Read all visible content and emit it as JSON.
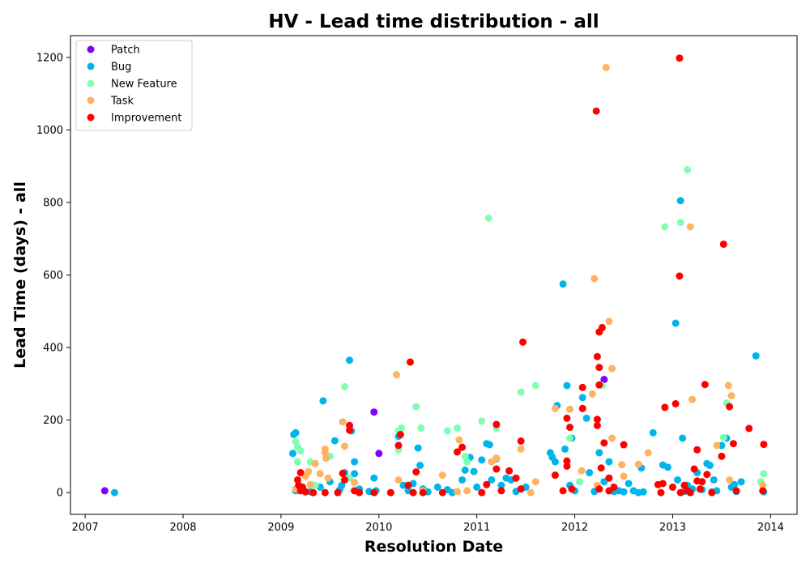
{
  "chart_data": {
    "type": "scatter",
    "title": "HV - Lead time distribution - all",
    "xlabel": "Resolution Date",
    "ylabel": "Lead Time (days) - all",
    "xlim": [
      2006.85,
      2014.27
    ],
    "ylim": [
      -60,
      1260
    ],
    "xticks": [
      2007,
      2008,
      2009,
      2010,
      2011,
      2012,
      2013,
      2014
    ],
    "yticks": [
      0,
      200,
      400,
      600,
      800,
      1000,
      1200
    ],
    "legend_position": "top-left",
    "grid": false,
    "series": [
      {
        "name": "Patch",
        "color": "#8000ff",
        "points": [
          [
            2007.2,
            5
          ],
          [
            2009.95,
            222
          ],
          [
            2010.0,
            108
          ],
          [
            2012.3,
            312
          ]
        ]
      },
      {
        "name": "Bug",
        "color": "#00b5eb",
        "points": [
          [
            2007.3,
            0
          ],
          [
            2009.13,
            160
          ],
          [
            2009.15,
            165
          ],
          [
            2009.12,
            108
          ],
          [
            2009.15,
            5
          ],
          [
            2009.2,
            10
          ],
          [
            2009.25,
            3
          ],
          [
            2009.3,
            2
          ],
          [
            2009.4,
            15
          ],
          [
            2009.43,
            253
          ],
          [
            2009.5,
            30
          ],
          [
            2009.55,
            143
          ],
          [
            2009.6,
            8
          ],
          [
            2009.62,
            20
          ],
          [
            2009.65,
            55
          ],
          [
            2009.7,
            365
          ],
          [
            2009.72,
            170
          ],
          [
            2009.75,
            85
          ],
          [
            2009.75,
            52
          ],
          [
            2009.8,
            10
          ],
          [
            2009.9,
            3
          ],
          [
            2009.95,
            40
          ],
          [
            2009.97,
            5
          ],
          [
            2010.2,
            155
          ],
          [
            2010.25,
            20
          ],
          [
            2010.3,
            5
          ],
          [
            2010.35,
            25
          ],
          [
            2010.4,
            123
          ],
          [
            2010.42,
            75
          ],
          [
            2010.45,
            10
          ],
          [
            2010.5,
            2
          ],
          [
            2010.6,
            15
          ],
          [
            2010.7,
            8
          ],
          [
            2010.75,
            0
          ],
          [
            2010.85,
            35
          ],
          [
            2010.88,
            62
          ],
          [
            2010.93,
            97
          ],
          [
            2010.97,
            58
          ],
          [
            2011.0,
            15
          ],
          [
            2011.05,
            90
          ],
          [
            2011.1,
            135
          ],
          [
            2011.13,
            132
          ],
          [
            2011.15,
            35
          ],
          [
            2011.2,
            93
          ],
          [
            2011.25,
            20
          ],
          [
            2011.3,
            40
          ],
          [
            2011.35,
            35
          ],
          [
            2011.4,
            3
          ],
          [
            2011.45,
            10
          ],
          [
            2011.5,
            15
          ],
          [
            2011.75,
            110
          ],
          [
            2011.77,
            98
          ],
          [
            2011.8,
            85
          ],
          [
            2011.82,
            240
          ],
          [
            2011.88,
            575
          ],
          [
            2011.92,
            295
          ],
          [
            2011.9,
            120
          ],
          [
            2011.95,
            20
          ],
          [
            2011.97,
            150
          ],
          [
            2012.0,
            5
          ],
          [
            2012.05,
            30
          ],
          [
            2012.08,
            262
          ],
          [
            2012.12,
            205
          ],
          [
            2012.15,
            55
          ],
          [
            2012.2,
            3
          ],
          [
            2012.25,
            110
          ],
          [
            2012.3,
            30
          ],
          [
            2012.35,
            85
          ],
          [
            2012.4,
            3
          ],
          [
            2012.45,
            5
          ],
          [
            2012.5,
            2
          ],
          [
            2012.55,
            25
          ],
          [
            2012.6,
            5
          ],
          [
            2012.65,
            0
          ],
          [
            2012.68,
            68
          ],
          [
            2012.7,
            2
          ],
          [
            2012.8,
            165
          ],
          [
            2012.9,
            76
          ],
          [
            2012.95,
            70
          ],
          [
            2013.03,
            467
          ],
          [
            2013.05,
            35
          ],
          [
            2013.08,
            805
          ],
          [
            2013.1,
            150
          ],
          [
            2013.12,
            3
          ],
          [
            2013.15,
            20
          ],
          [
            2013.2,
            10
          ],
          [
            2013.25,
            55
          ],
          [
            2013.3,
            8
          ],
          [
            2013.35,
            80
          ],
          [
            2013.38,
            75
          ],
          [
            2013.4,
            2
          ],
          [
            2013.42,
            35
          ],
          [
            2013.45,
            5
          ],
          [
            2013.5,
            130
          ],
          [
            2013.55,
            150
          ],
          [
            2013.6,
            15
          ],
          [
            2013.63,
            22
          ],
          [
            2013.65,
            3
          ],
          [
            2013.7,
            30
          ],
          [
            2013.85,
            377
          ],
          [
            2013.93,
            2
          ]
        ]
      },
      {
        "name": "New Feature",
        "color": "#80ffb4",
        "points": [
          [
            2009.15,
            140
          ],
          [
            2009.17,
            125
          ],
          [
            2009.2,
            115
          ],
          [
            2009.17,
            85
          ],
          [
            2009.3,
            85
          ],
          [
            2009.35,
            20
          ],
          [
            2009.5,
            100
          ],
          [
            2009.65,
            292
          ],
          [
            2009.7,
            40
          ],
          [
            2010.2,
            170
          ],
          [
            2010.2,
            118
          ],
          [
            2010.23,
            178
          ],
          [
            2010.38,
            237
          ],
          [
            2010.43,
            178
          ],
          [
            2010.7,
            170
          ],
          [
            2010.8,
            178
          ],
          [
            2010.88,
            100
          ],
          [
            2010.9,
            85
          ],
          [
            2011.05,
            197
          ],
          [
            2011.12,
            757
          ],
          [
            2011.2,
            178
          ],
          [
            2011.45,
            277
          ],
          [
            2011.6,
            295
          ],
          [
            2011.95,
            150
          ],
          [
            2012.05,
            30
          ],
          [
            2012.28,
            295
          ],
          [
            2012.92,
            733
          ],
          [
            2013.08,
            745
          ],
          [
            2013.15,
            890
          ],
          [
            2013.52,
            152
          ],
          [
            2013.55,
            247
          ],
          [
            2013.9,
            30
          ],
          [
            2013.93,
            52
          ]
        ]
      },
      {
        "name": "Task",
        "color": "#ffb360",
        "points": [
          [
            2009.15,
            10
          ],
          [
            2009.25,
            45
          ],
          [
            2009.28,
            58
          ],
          [
            2009.3,
            22
          ],
          [
            2009.35,
            80
          ],
          [
            2009.4,
            52
          ],
          [
            2009.45,
            120
          ],
          [
            2009.45,
            110
          ],
          [
            2009.46,
            95
          ],
          [
            2009.48,
            40
          ],
          [
            2009.63,
            195
          ],
          [
            2009.65,
            128
          ],
          [
            2009.75,
            28
          ],
          [
            2010.18,
            325
          ],
          [
            2010.2,
            35
          ],
          [
            2010.45,
            5
          ],
          [
            2010.65,
            48
          ],
          [
            2010.82,
            145
          ],
          [
            2010.8,
            3
          ],
          [
            2010.9,
            5
          ],
          [
            2011.15,
            85
          ],
          [
            2011.2,
            95
          ],
          [
            2011.45,
            120
          ],
          [
            2011.55,
            0
          ],
          [
            2011.6,
            30
          ],
          [
            2011.8,
            232
          ],
          [
            2011.95,
            230
          ],
          [
            2012.07,
            60
          ],
          [
            2012.18,
            272
          ],
          [
            2012.2,
            590
          ],
          [
            2012.23,
            20
          ],
          [
            2012.32,
            1172
          ],
          [
            2012.35,
            472
          ],
          [
            2012.38,
            342
          ],
          [
            2012.38,
            150
          ],
          [
            2012.48,
            77
          ],
          [
            2012.5,
            45
          ],
          [
            2012.65,
            78
          ],
          [
            2012.75,
            110
          ],
          [
            2013.18,
            733
          ],
          [
            2013.2,
            257
          ],
          [
            2013.45,
            130
          ],
          [
            2013.57,
            295
          ],
          [
            2013.6,
            267
          ],
          [
            2013.58,
            35
          ],
          [
            2013.92,
            20
          ]
        ]
      },
      {
        "name": "Improvement",
        "color": "#ff0000",
        "points": [
          [
            2009.17,
            35
          ],
          [
            2009.18,
            20
          ],
          [
            2009.2,
            55
          ],
          [
            2009.2,
            5
          ],
          [
            2009.22,
            15
          ],
          [
            2009.25,
            2
          ],
          [
            2009.33,
            0
          ],
          [
            2009.45,
            0
          ],
          [
            2009.58,
            0
          ],
          [
            2009.63,
            53
          ],
          [
            2009.65,
            35
          ],
          [
            2009.7,
            185
          ],
          [
            2009.7,
            172
          ],
          [
            2009.75,
            5
          ],
          [
            2009.8,
            0
          ],
          [
            2009.95,
            0
          ],
          [
            2010.12,
            0
          ],
          [
            2010.2,
            130
          ],
          [
            2010.22,
            160
          ],
          [
            2010.3,
            20
          ],
          [
            2010.32,
            360
          ],
          [
            2010.35,
            0
          ],
          [
            2010.38,
            57
          ],
          [
            2010.45,
            0
          ],
          [
            2010.65,
            0
          ],
          [
            2010.8,
            112
          ],
          [
            2010.85,
            125
          ],
          [
            2011.05,
            0
          ],
          [
            2011.1,
            22
          ],
          [
            2011.2,
            188
          ],
          [
            2011.2,
            65
          ],
          [
            2011.25,
            5
          ],
          [
            2011.33,
            60
          ],
          [
            2011.4,
            40
          ],
          [
            2011.47,
            415
          ],
          [
            2011.45,
            142
          ],
          [
            2011.45,
            10
          ],
          [
            2011.8,
            48
          ],
          [
            2011.88,
            5
          ],
          [
            2011.92,
            205
          ],
          [
            2011.92,
            87
          ],
          [
            2011.92,
            73
          ],
          [
            2011.95,
            180
          ],
          [
            2011.97,
            10
          ],
          [
            2012.08,
            290
          ],
          [
            2012.08,
            232
          ],
          [
            2012.22,
            1052
          ],
          [
            2012.23,
            375
          ],
          [
            2012.23,
            202
          ],
          [
            2012.23,
            185
          ],
          [
            2012.25,
            345
          ],
          [
            2012.25,
            297
          ],
          [
            2012.25,
            10
          ],
          [
            2012.25,
            443
          ],
          [
            2012.28,
            455
          ],
          [
            2012.27,
            68
          ],
          [
            2012.3,
            137
          ],
          [
            2012.35,
            40
          ],
          [
            2012.35,
            5
          ],
          [
            2012.4,
            15
          ],
          [
            2012.5,
            132
          ],
          [
            2012.85,
            22
          ],
          [
            2012.88,
            0
          ],
          [
            2012.92,
            235
          ],
          [
            2012.9,
            25
          ],
          [
            2013.0,
            15
          ],
          [
            2013.03,
            245
          ],
          [
            2013.07,
            1198
          ],
          [
            2013.07,
            597
          ],
          [
            2013.08,
            0
          ],
          [
            2013.12,
            20
          ],
          [
            2013.15,
            5
          ],
          [
            2013.18,
            0
          ],
          [
            2013.22,
            65
          ],
          [
            2013.25,
            118
          ],
          [
            2013.25,
            32
          ],
          [
            2013.28,
            10
          ],
          [
            2013.3,
            30
          ],
          [
            2013.33,
            298
          ],
          [
            2013.35,
            50
          ],
          [
            2013.4,
            0
          ],
          [
            2013.5,
            100
          ],
          [
            2013.52,
            685
          ],
          [
            2013.58,
            237
          ],
          [
            2013.62,
            135
          ],
          [
            2013.65,
            5
          ],
          [
            2013.78,
            177
          ],
          [
            2013.93,
            133
          ],
          [
            2013.92,
            5
          ]
        ]
      }
    ]
  }
}
